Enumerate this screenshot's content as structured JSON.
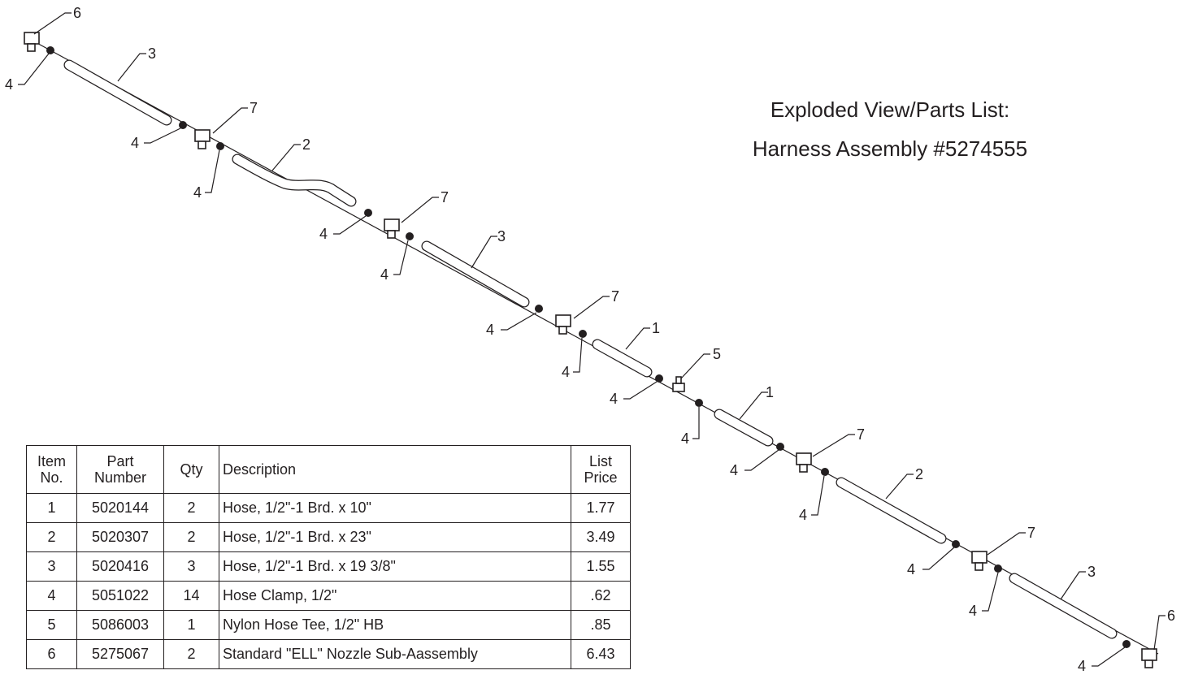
{
  "title": {
    "line1": "Exploded View/Parts List:",
    "line2": "Harness Assembly #5274555"
  },
  "table": {
    "headers": {
      "item": [
        "Item",
        "No."
      ],
      "part": [
        "Part",
        "Number"
      ],
      "qty": "Qty",
      "description": "Description",
      "price": [
        "List",
        "Price"
      ]
    },
    "rows": [
      {
        "item": "1",
        "part": "5020144",
        "qty": "2",
        "description": "Hose, 1/2\"-1 Brd. x 10\"",
        "price": "1.77"
      },
      {
        "item": "2",
        "part": "5020307",
        "qty": "2",
        "description": "Hose, 1/2\"-1 Brd. x 23\"",
        "price": "3.49"
      },
      {
        "item": "3",
        "part": "5020416",
        "qty": "3",
        "description": "Hose, 1/2\"-1 Brd. x 19 3/8\"",
        "price": "1.55"
      },
      {
        "item": "4",
        "part": "5051022",
        "qty": "14",
        "description": "Hose Clamp, 1/2\"",
        "price": ".62"
      },
      {
        "item": "5",
        "part": "5086003",
        "qty": "1",
        "description": "Nylon Hose Tee, 1/2\" HB",
        "price": ".85"
      },
      {
        "item": "6",
        "part": "5275067",
        "qty": "2",
        "description": "Standard \"ELL\" Nozzle Sub-Aassembly",
        "price": "6.43"
      }
    ]
  },
  "callouts": [
    "6",
    "3",
    "4",
    "4",
    "7",
    "2",
    "4",
    "4",
    "7",
    "3",
    "4",
    "4",
    "7",
    "1",
    "4",
    "5",
    "4",
    "4",
    "1",
    "4",
    "7",
    "2",
    "4",
    "4",
    "7",
    "3",
    "4",
    "4",
    "6"
  ]
}
